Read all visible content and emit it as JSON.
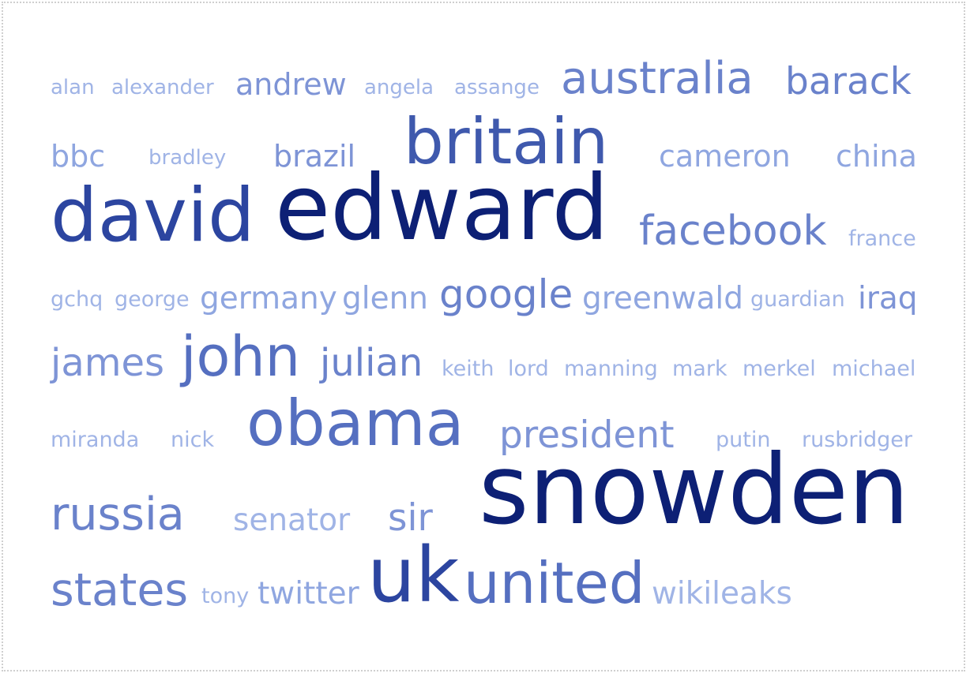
{
  "word_cloud": {
    "words": [
      {
        "text": "alan",
        "weight": 1
      },
      {
        "text": "alexander",
        "weight": 1
      },
      {
        "text": "andrew",
        "weight": 3
      },
      {
        "text": "angela",
        "weight": 1
      },
      {
        "text": "assange",
        "weight": 1
      },
      {
        "text": "australia",
        "weight": 5
      },
      {
        "text": "barack",
        "weight": 4
      },
      {
        "text": "bbc",
        "weight": 2
      },
      {
        "text": "bradley",
        "weight": 1
      },
      {
        "text": "brazil",
        "weight": 2
      },
      {
        "text": "britain",
        "weight": 7
      },
      {
        "text": "cameron",
        "weight": 2
      },
      {
        "text": "china",
        "weight": 2
      },
      {
        "text": "david",
        "weight": 8
      },
      {
        "text": "edward",
        "weight": 9
      },
      {
        "text": "facebook",
        "weight": 5
      },
      {
        "text": "france",
        "weight": 1
      },
      {
        "text": "gchq",
        "weight": 1
      },
      {
        "text": "george",
        "weight": 1
      },
      {
        "text": "germany",
        "weight": 3
      },
      {
        "text": "glenn",
        "weight": 3
      },
      {
        "text": "google",
        "weight": 4
      },
      {
        "text": "greenwald",
        "weight": 3
      },
      {
        "text": "guardian",
        "weight": 1
      },
      {
        "text": "iraq",
        "weight": 3
      },
      {
        "text": "james",
        "weight": 4
      },
      {
        "text": "john",
        "weight": 6
      },
      {
        "text": "julian",
        "weight": 4
      },
      {
        "text": "keith",
        "weight": 1
      },
      {
        "text": "lord",
        "weight": 1
      },
      {
        "text": "manning",
        "weight": 1
      },
      {
        "text": "mark",
        "weight": 1
      },
      {
        "text": "merkel",
        "weight": 1
      },
      {
        "text": "michael",
        "weight": 1
      },
      {
        "text": "miranda",
        "weight": 1
      },
      {
        "text": "nick",
        "weight": 1
      },
      {
        "text": "obama",
        "weight": 7
      },
      {
        "text": "president",
        "weight": 4
      },
      {
        "text": "putin",
        "weight": 1
      },
      {
        "text": "rusbridger",
        "weight": 1
      },
      {
        "text": "russia",
        "weight": 5
      },
      {
        "text": "senator",
        "weight": 2
      },
      {
        "text": "sir",
        "weight": 3
      },
      {
        "text": "snowden",
        "weight": 10
      },
      {
        "text": "states",
        "weight": 5
      },
      {
        "text": "tony",
        "weight": 1
      },
      {
        "text": "twitter",
        "weight": 2
      },
      {
        "text": "uk",
        "weight": 8
      },
      {
        "text": "united",
        "weight": 6
      },
      {
        "text": "wikileaks",
        "weight": 2
      }
    ]
  }
}
